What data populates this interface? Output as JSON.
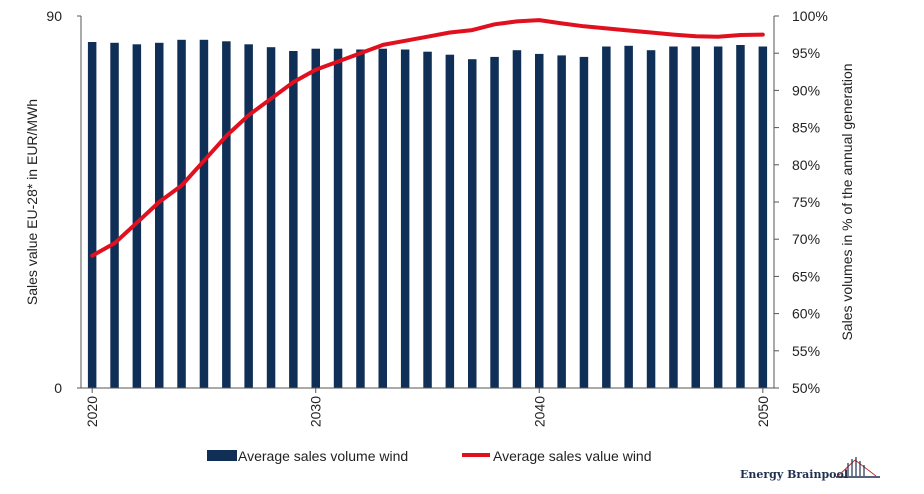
{
  "chart_data": {
    "type": "bar",
    "x": [
      2020,
      2021,
      2022,
      2023,
      2024,
      2025,
      2026,
      2027,
      2028,
      2029,
      2030,
      2031,
      2032,
      2033,
      2034,
      2035,
      2036,
      2037,
      2038,
      2039,
      2040,
      2041,
      2042,
      2043,
      2044,
      2045,
      2046,
      2047,
      2048,
      2049,
      2050
    ],
    "x_tick_labels": [
      "2020",
      "2030",
      "2040",
      "2050"
    ],
    "series": [
      {
        "name": "Average sales volume wind",
        "type": "bar",
        "axis": "right",
        "color": "#0f2f57",
        "values": [
          96.5,
          96.4,
          96.2,
          96.4,
          96.8,
          96.8,
          96.6,
          96.2,
          95.8,
          95.3,
          95.6,
          95.6,
          95.5,
          95.6,
          95.5,
          95.2,
          94.8,
          94.2,
          94.5,
          95.4,
          94.9,
          94.7,
          94.5,
          95.9,
          96.0,
          95.4,
          95.9,
          95.9,
          95.9,
          96.1,
          95.9
        ]
      },
      {
        "name": "Average sales value wind",
        "type": "line",
        "axis": "left",
        "color": "#e0101e",
        "values": [
          32,
          35,
          40,
          45,
          49,
          55,
          61,
          66,
          70,
          74,
          77,
          79,
          81,
          83,
          84,
          85,
          86,
          86.6,
          88,
          88.7,
          89,
          88.2,
          87.5,
          87,
          86.5,
          86,
          85.5,
          85.1,
          85,
          85.4,
          85.5
        ]
      }
    ],
    "left_axis": {
      "title": "Sales value EU-28* in EUR/MWh",
      "ylim": [
        0,
        90
      ],
      "tick_labels": [
        "0",
        "90"
      ]
    },
    "right_axis": {
      "title": "Sales volumes in % of the annual generation",
      "ylim": [
        50,
        100
      ],
      "tick_labels": [
        "50%",
        "55%",
        "60%",
        "65%",
        "70%",
        "75%",
        "80%",
        "85%",
        "90%",
        "95%",
        "100%"
      ]
    },
    "legend_position": "bottom",
    "grid": false
  },
  "logo": {
    "text": "Energy Brainpool"
  }
}
